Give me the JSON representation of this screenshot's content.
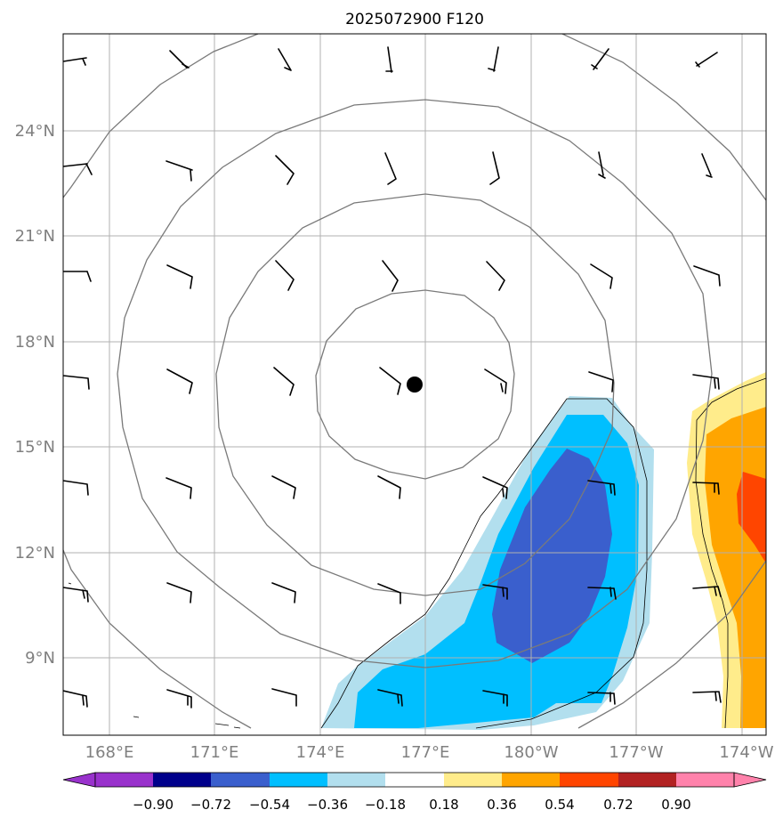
{
  "title": "2025072900 F120",
  "map": {
    "lon_ticks": [
      "168°E",
      "171°E",
      "174°E",
      "177°E",
      "180°W",
      "177°W",
      "174°W"
    ],
    "lat_ticks": [
      "24°N",
      "21°N",
      "18°N",
      "15°N",
      "12°N",
      "9°N"
    ],
    "center_marker": "storm-center-dot",
    "gridlines": true
  },
  "colorbar": {
    "ticks": [
      "−0.90",
      "−0.72",
      "−0.54",
      "−0.36",
      "−0.18",
      "0.18",
      "0.36",
      "0.54",
      "0.72",
      "0.90"
    ],
    "colors": [
      "#9932cc",
      "#00008b",
      "#3a5fcd",
      "#00bfff",
      "#b2dfee",
      "#ffffff",
      "#ffec8b",
      "#ffa500",
      "#ff4500",
      "#b22222",
      "#ff82ab"
    ],
    "extend": "both"
  }
}
